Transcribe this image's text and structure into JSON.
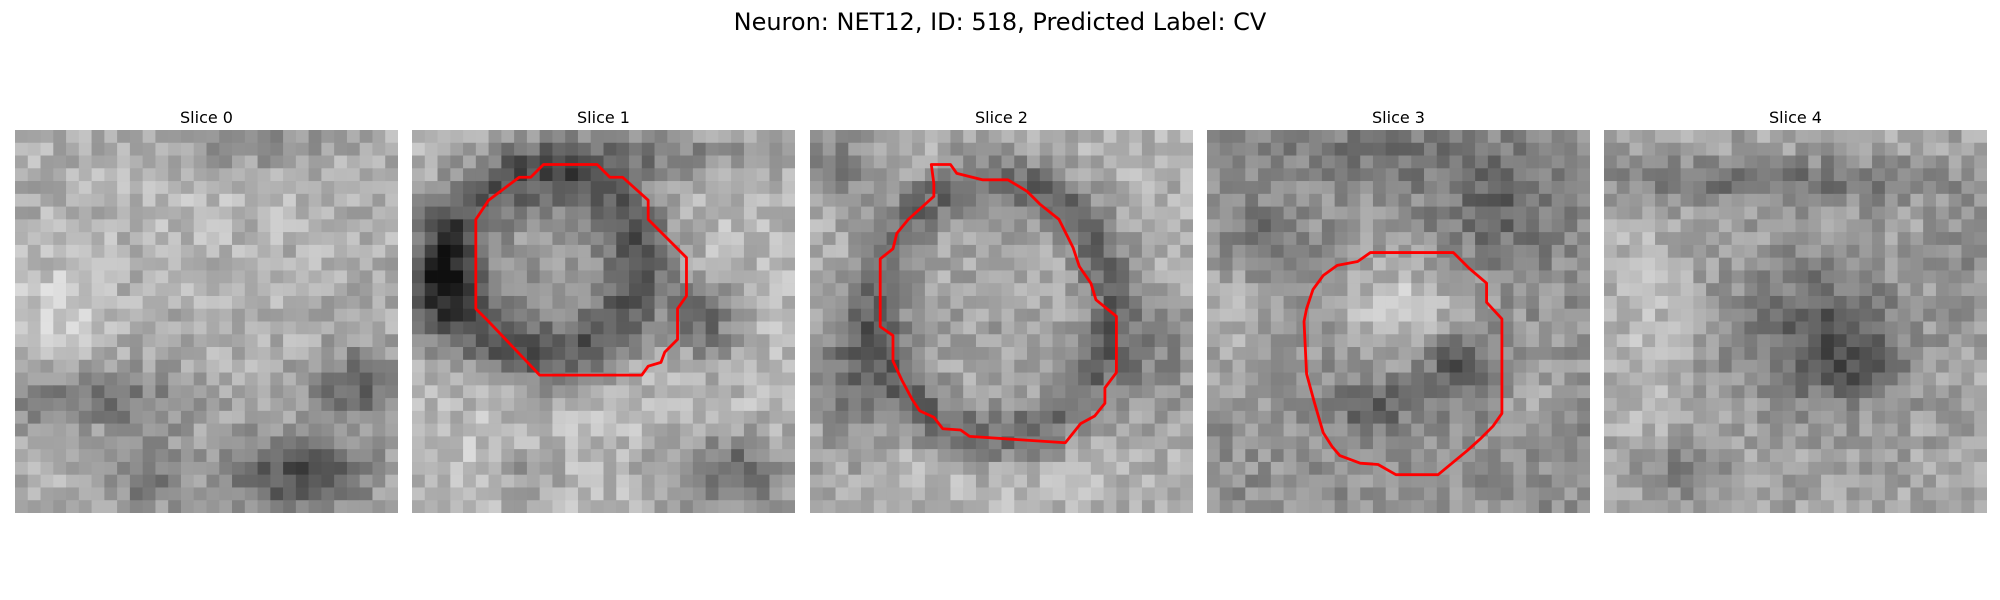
{
  "figure": {
    "title": "Neuron: NET12, ID: 518, Predicted Label: CV"
  },
  "colors": {
    "contour": "#ff0000",
    "background": "#ffffff"
  },
  "slices": [
    {
      "title": "Slice 0",
      "has_contour": false
    },
    {
      "title": "Slice 1",
      "has_contour": true
    },
    {
      "title": "Slice 2",
      "has_contour": true
    },
    {
      "title": "Slice 3",
      "has_contour": true
    },
    {
      "title": "Slice 4",
      "has_contour": false
    }
  ]
}
